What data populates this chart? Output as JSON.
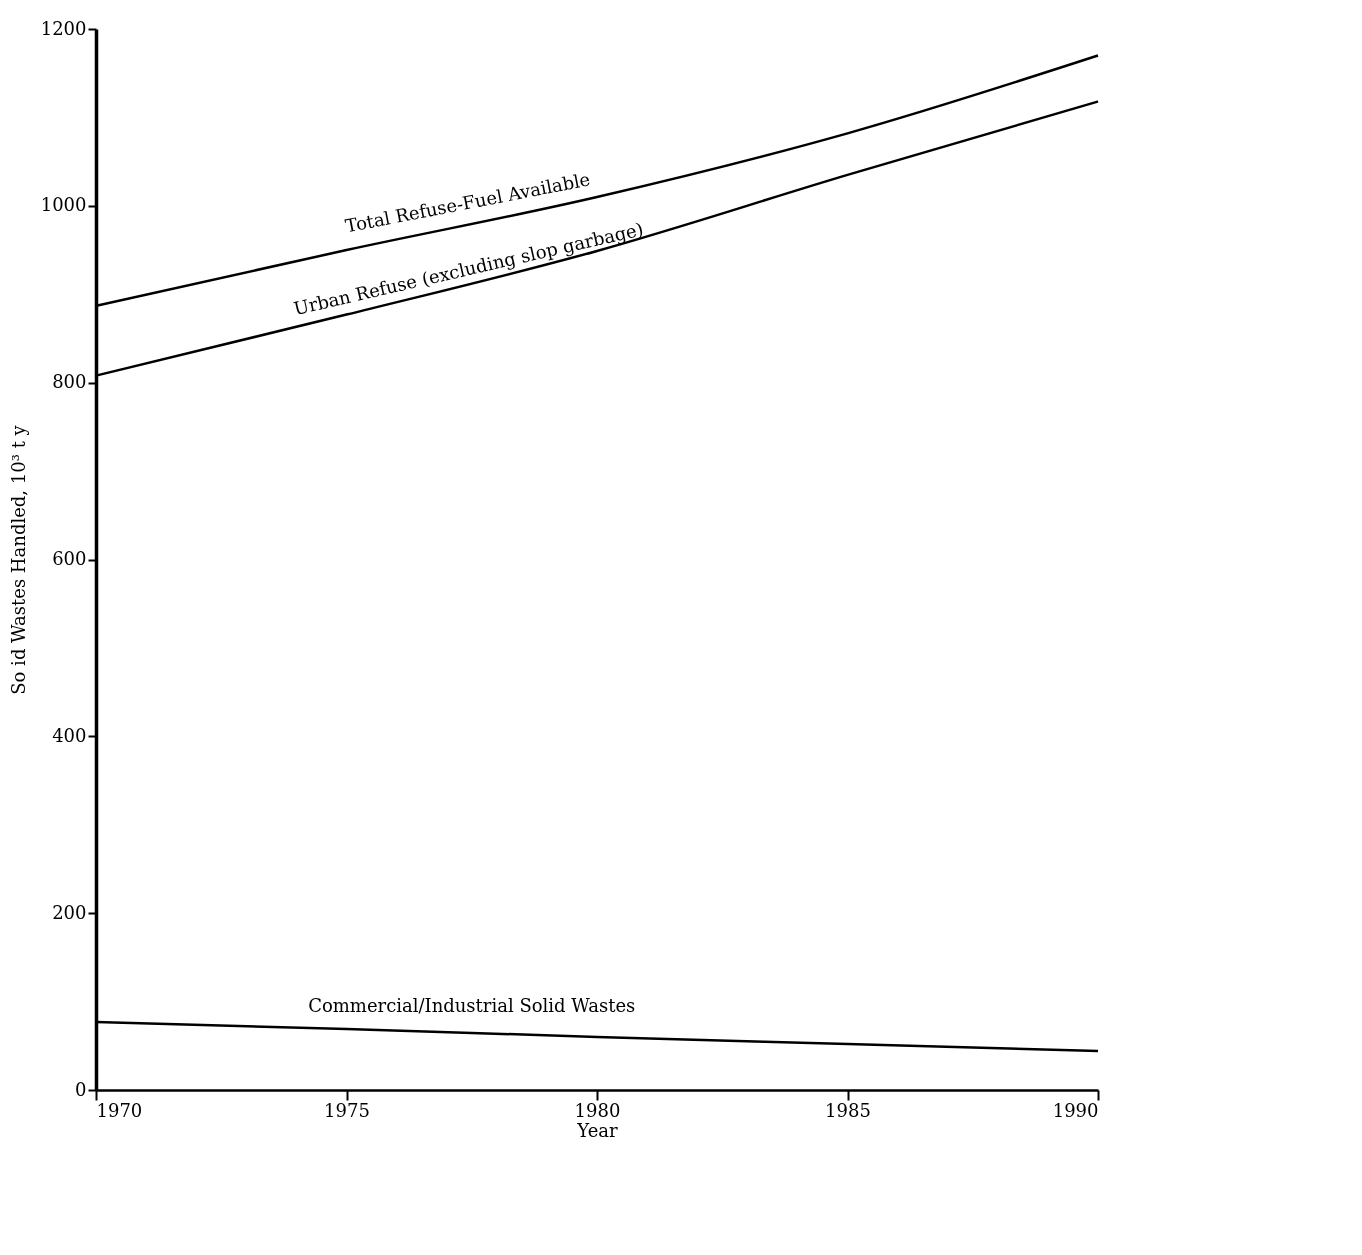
{
  "chart_data": {
    "type": "line",
    "xlabel": "Year",
    "ylabel": "So id Wastes Handled, 10³ t y",
    "x": [
      1970,
      1975,
      1980,
      1985,
      1990
    ],
    "series": [
      {
        "name": "Total Refuse-Fuel Available",
        "color": "#000000",
        "values": [
          887,
          950,
          1010,
          1082,
          1170
        ]
      },
      {
        "name": "Urban Refuse    (excluding slop garbage)",
        "color": "#000000",
        "values": [
          808,
          877,
          949,
          1035,
          1118
        ]
      },
      {
        "name": "Commercial/Industrial Solid Wastes",
        "color": "#000000",
        "values": [
          77,
          69,
          60,
          52,
          44
        ]
      }
    ],
    "xlim": [
      1970,
      1990
    ],
    "xticks": [
      1970,
      1975,
      1980,
      1985,
      1990
    ],
    "ylim": [
      0,
      1200
    ],
    "yticks": [
      0,
      200,
      400,
      600,
      800,
      1000,
      1200
    ],
    "grid": false,
    "legend": false,
    "marker": "none",
    "line_style": "solid"
  }
}
